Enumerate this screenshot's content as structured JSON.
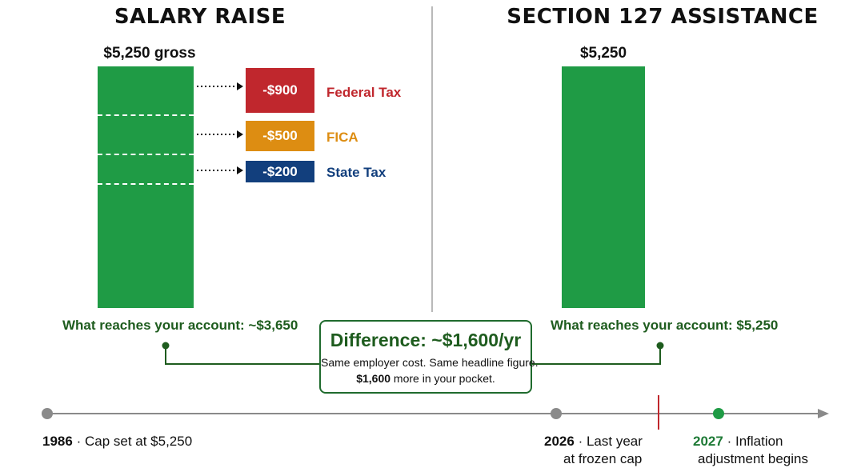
{
  "left": {
    "title": "SALARY RAISE",
    "bar_label": "$5,250 gross",
    "deductions": [
      {
        "amount": "-$900",
        "name": "Federal Tax",
        "color": "#c0272d"
      },
      {
        "amount": "-$500",
        "name": "FICA",
        "color": "#dd8d12"
      },
      {
        "amount": "-$200",
        "name": "State Tax",
        "color": "#123f7d"
      }
    ],
    "reach_text": "What reaches your account: ~$3,650"
  },
  "right": {
    "title": "SECTION 127 ASSISTANCE",
    "bar_label": "$5,250",
    "reach_text": "What reaches your account: $5,250"
  },
  "callout": {
    "heading": "Difference: ~$1,600/yr",
    "line1": "Same employer cost. Same headline figure.",
    "line2_bold": "$1,600",
    "line2_rest": " more in your pocket."
  },
  "timeline": [
    {
      "year": "1986",
      "separator": "·",
      "text": "Cap set at $5,250",
      "color": "#8a8a8a"
    },
    {
      "year": "2026",
      "separator": "·",
      "text": "Last year",
      "text2": "at frozen cap",
      "color": "#8a8a8a"
    },
    {
      "year": "2027",
      "separator": "·",
      "text": "Inflation",
      "text2": "adjustment begins",
      "color": "#1f9b45"
    }
  ],
  "colors": {
    "bar_green": "#1f9b45",
    "dark_green": "#1e5c1e",
    "marker_red": "#c0272d",
    "axis_gray": "#8a8a8a"
  }
}
